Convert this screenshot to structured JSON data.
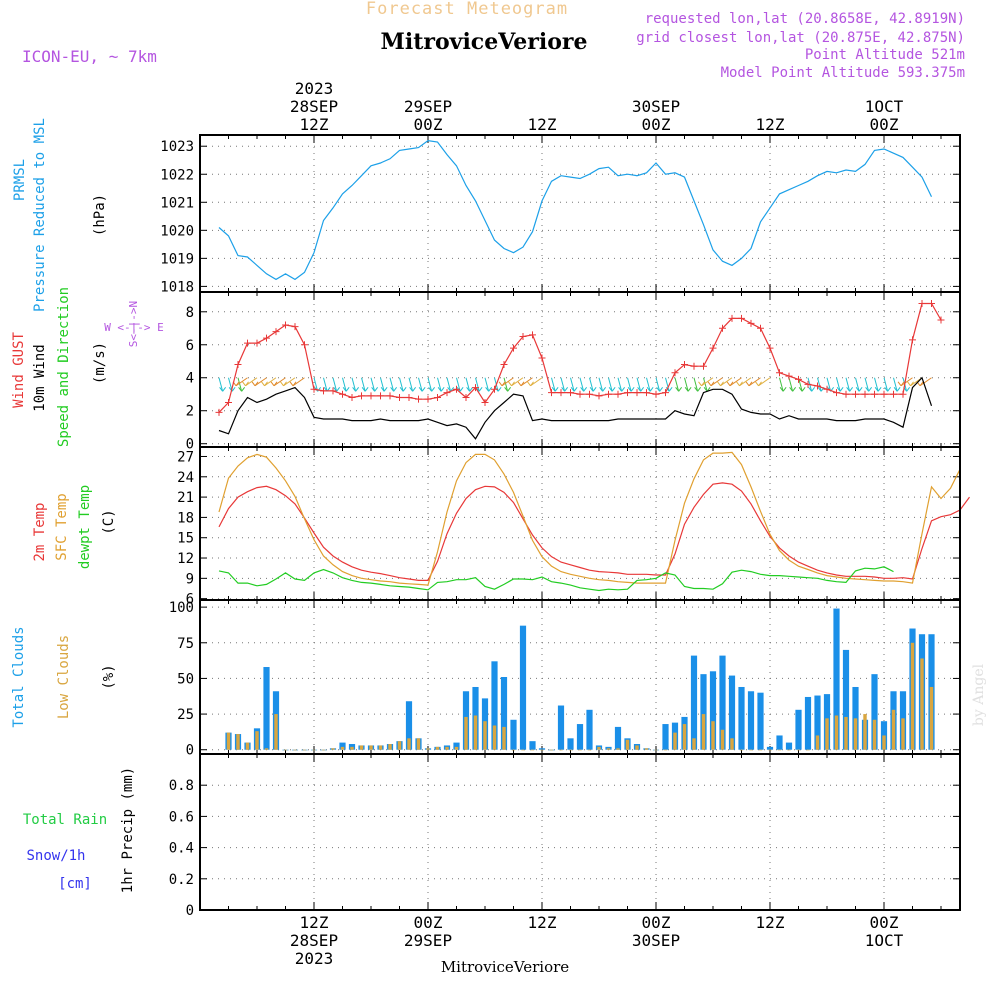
{
  "header": {
    "product": "Forecast Meteogram",
    "title": "MitroviceVeriore",
    "model": "ICON-EU, ~ 7km",
    "requested": "requested lon,lat (20.8658E, 42.8919N)",
    "closest": "grid closest lon,lat (20.875E, 42.875N)",
    "point_alt": "Point Altitude 521m",
    "model_alt": "Model Point Altitude 593.375m",
    "footer": "MitroviceVeriore",
    "credit": "by Angel"
  },
  "time_axis": {
    "top_labels": [
      {
        "h": 12,
        "lines": [
          "2023",
          "28SEP",
          "12Z"
        ]
      },
      {
        "h": 24,
        "lines": [
          "29SEP",
          "00Z"
        ]
      },
      {
        "h": 36,
        "lines": [
          "12Z"
        ]
      },
      {
        "h": 48,
        "lines": [
          "30SEP",
          "00Z"
        ]
      },
      {
        "h": 60,
        "lines": [
          "12Z"
        ]
      },
      {
        "h": 72,
        "lines": [
          "1OCT",
          "00Z"
        ]
      }
    ],
    "bottom_labels": [
      {
        "h": 12,
        "lines": [
          "12Z",
          "28SEP",
          "2023"
        ]
      },
      {
        "h": 24,
        "lines": [
          "00Z",
          "29SEP"
        ]
      },
      {
        "h": 36,
        "lines": [
          "12Z"
        ]
      },
      {
        "h": 48,
        "lines": [
          "00Z",
          "30SEP"
        ]
      },
      {
        "h": 60,
        "lines": [
          "12Z"
        ]
      },
      {
        "h": 72,
        "lines": [
          "00Z",
          "1OCT"
        ]
      }
    ]
  },
  "panel_labels": {
    "pressure": {
      "name": "PRMSL",
      "desc": "Pressure Reduced to MSL",
      "unit": "(hPa)"
    },
    "wind": {
      "gust": "Wind GUST",
      "wind": "10m Wind",
      "dir": "Speed and Direction",
      "unit": "(m/s)",
      "compass_we": "W <-|-> E",
      "compass_ns": "S<-|->N"
    },
    "temp": {
      "t2m": "2m Temp",
      "sfc": "SFC Temp",
      "dewpt": "dewpt Temp",
      "unit": "(C)"
    },
    "clouds": {
      "total": "Total Clouds",
      "low": "Low Clouds",
      "unit": "(%)"
    },
    "precip": {
      "rain": "Total  Rain",
      "snow": "Snow/1h",
      "snow_unit": "[cm]",
      "axis": "1hr Precip (mm)"
    }
  },
  "colors": {
    "pressure": "#1ca0e8",
    "gust": "#e83838",
    "wind": "#000000",
    "t2m": "#e83838",
    "sfc": "#e0a030",
    "dewpt": "#22cc22",
    "total_clouds": "#1a8fe8",
    "low_clouds": "#d9a640",
    "header_purple": "#b455e0",
    "title_orange": "#f0c890",
    "rain_green": "#22cc44",
    "snow_blue": "#3333ee"
  },
  "chart_data": [
    {
      "type": "line",
      "name": "pressure",
      "ylabel": "(hPa)",
      "ylim": [
        1017.8,
        1023.4
      ],
      "yticks": [
        1018,
        1019,
        1020,
        1021,
        1022,
        1023
      ],
      "x_start_hour": 2,
      "series": [
        {
          "name": "PRMSL",
          "values": [
            1020.1,
            1019.8,
            1019.1,
            1019.05,
            1018.75,
            1018.45,
            1018.25,
            1018.45,
            1018.25,
            1018.5,
            1019.2,
            1020.35,
            1020.8,
            1021.3,
            1021.6,
            1021.95,
            1022.3,
            1022.4,
            1022.55,
            1022.85,
            1022.9,
            1022.95,
            1023.2,
            1023.15,
            1022.7,
            1022.3,
            1021.6,
            1021.05,
            1020.35,
            1019.65,
            1019.35,
            1019.2,
            1019.4,
            1019.95,
            1021.05,
            1021.75,
            1021.95,
            1021.9,
            1021.85,
            1022.0,
            1022.2,
            1022.25,
            1021.95,
            1022.0,
            1021.95,
            1022.05,
            1022.4,
            1022.0,
            1022.05,
            1021.9,
            1021.05,
            1020.2,
            1019.3,
            1018.9,
            1018.75,
            1019.0,
            1019.35,
            1020.3,
            1020.8,
            1021.3,
            1021.45,
            1021.6,
            1021.75,
            1021.95,
            1022.1,
            1022.05,
            1022.15,
            1022.1,
            1022.35,
            1022.85,
            1022.9,
            1022.75,
            1022.6,
            1022.25,
            1021.9,
            1021.2
          ]
        }
      ]
    },
    {
      "type": "line",
      "name": "wind",
      "ylabel": "(m/s)",
      "ylim": [
        -0.2,
        9.2
      ],
      "yticks": [
        0,
        2,
        4,
        6,
        8
      ],
      "x_start_hour": 2,
      "series": [
        {
          "name": "Wind GUST",
          "values": [
            1.9,
            2.5,
            4.8,
            6.1,
            6.1,
            6.4,
            6.8,
            7.2,
            7.1,
            6.0,
            3.3,
            3.2,
            3.2,
            3.0,
            2.8,
            2.9,
            2.9,
            2.9,
            2.9,
            2.8,
            2.8,
            2.7,
            2.7,
            2.8,
            3.1,
            3.3,
            2.8,
            3.4,
            2.5,
            3.3,
            4.8,
            5.8,
            6.5,
            6.6,
            5.2,
            3.1,
            3.1,
            3.1,
            3.0,
            3.0,
            2.9,
            3.0,
            3.0,
            3.1,
            3.1,
            3.1,
            3.0,
            3.1,
            4.3,
            4.8,
            4.7,
            4.7,
            5.8,
            7.0,
            7.6,
            7.6,
            7.3,
            7.0,
            5.8,
            4.3,
            4.1,
            3.9,
            3.6,
            3.5,
            3.3,
            3.1,
            3.0,
            3.0,
            3.0,
            3.0,
            3.0,
            3.0,
            3.0,
            6.3,
            8.5,
            8.5,
            7.5
          ]
        },
        {
          "name": "10m Wind",
          "values": [
            0.8,
            0.6,
            2.0,
            2.8,
            2.5,
            2.7,
            3.0,
            3.2,
            3.4,
            2.8,
            1.6,
            1.5,
            1.5,
            1.5,
            1.4,
            1.4,
            1.4,
            1.5,
            1.4,
            1.4,
            1.4,
            1.4,
            1.5,
            1.3,
            1.1,
            1.2,
            1.0,
            0.3,
            1.3,
            2.0,
            2.5,
            3.0,
            2.9,
            1.4,
            1.5,
            1.4,
            1.4,
            1.4,
            1.4,
            1.4,
            1.4,
            1.4,
            1.5,
            1.5,
            1.5,
            1.5,
            1.5,
            1.5,
            2.0,
            1.8,
            1.7,
            3.1,
            3.3,
            3.3,
            3.0,
            2.1,
            1.9,
            1.8,
            1.8,
            1.5,
            1.7,
            1.5,
            1.5,
            1.5,
            1.5,
            1.4,
            1.4,
            1.4,
            1.5,
            1.5,
            1.5,
            1.3,
            1.0,
            3.4,
            4.0,
            2.3
          ]
        }
      ],
      "arrows": {
        "y_level": 4,
        "from_hour": 2,
        "to_hour": 77,
        "step_hours": 1
      }
    },
    {
      "type": "line",
      "name": "temperature",
      "ylabel": "(C)",
      "ylim": [
        5.8,
        28.4
      ],
      "yticks": [
        6,
        9,
        12,
        15,
        18,
        21,
        24,
        27
      ],
      "x_start_hour": 2,
      "series": [
        {
          "name": "2m Temp",
          "values": [
            16.6,
            19.3,
            21.0,
            21.8,
            22.4,
            22.6,
            22.1,
            21.2,
            20.0,
            17.9,
            15.7,
            13.6,
            12.3,
            11.4,
            10.7,
            10.2,
            9.9,
            9.7,
            9.4,
            9.1,
            8.9,
            8.7,
            8.7,
            11.5,
            15.6,
            18.6,
            20.8,
            22.1,
            22.6,
            22.5,
            21.7,
            20.2,
            17.8,
            15.4,
            13.5,
            12.2,
            11.4,
            11.0,
            10.6,
            10.2,
            10.0,
            9.9,
            9.8,
            9.6,
            9.6,
            9.6,
            9.5,
            9.5,
            12.6,
            17.0,
            19.5,
            21.4,
            22.9,
            23.1,
            22.9,
            21.9,
            20.0,
            17.5,
            15.2,
            13.5,
            12.3,
            11.4,
            10.8,
            10.2,
            9.8,
            9.5,
            9.3,
            9.3,
            9.3,
            9.2,
            9.0,
            9.0,
            9.1,
            8.9,
            13.4,
            17.5,
            18.1,
            18.4,
            19.1,
            21.0
          ]
        },
        {
          "name": "SFC Temp",
          "values": [
            18.8,
            23.8,
            25.6,
            26.8,
            27.3,
            26.9,
            25.3,
            23.4,
            21.1,
            17.8,
            14.7,
            12.3,
            11.0,
            10.0,
            9.4,
            9.0,
            8.8,
            8.6,
            8.5,
            8.3,
            8.2,
            8.1,
            8.0,
            12.9,
            18.8,
            23.4,
            26.1,
            27.3,
            27.3,
            26.5,
            24.4,
            21.7,
            18.2,
            14.6,
            12.2,
            10.8,
            10.0,
            9.6,
            9.3,
            9.0,
            8.8,
            8.7,
            8.5,
            8.4,
            8.3,
            8.3,
            8.3,
            8.3,
            14.6,
            20.1,
            23.7,
            26.5,
            27.5,
            27.5,
            27.6,
            25.8,
            22.5,
            18.9,
            15.5,
            13.1,
            11.7,
            10.8,
            10.3,
            9.8,
            9.4,
            9.2,
            9.0,
            8.9,
            8.8,
            8.7,
            8.6,
            8.6,
            8.5,
            8.3,
            15.6,
            22.5,
            20.8,
            22.3,
            25.1
          ]
        },
        {
          "name": "dewpt Temp",
          "values": [
            10.1,
            9.8,
            8.3,
            8.3,
            7.9,
            8.1,
            8.9,
            9.8,
            8.9,
            8.7,
            9.8,
            10.3,
            9.8,
            9.1,
            8.7,
            8.4,
            8.3,
            8.1,
            7.9,
            7.8,
            7.7,
            7.5,
            7.3,
            8.4,
            8.5,
            8.8,
            8.8,
            9.1,
            7.8,
            7.4,
            8.1,
            8.9,
            8.9,
            8.8,
            9.2,
            8.5,
            8.3,
            8.0,
            7.6,
            7.4,
            7.2,
            7.4,
            7.3,
            7.4,
            8.7,
            8.8,
            9.0,
            9.8,
            9.5,
            7.8,
            7.5,
            7.5,
            7.4,
            8.2,
            9.9,
            10.2,
            10.0,
            9.6,
            9.4,
            9.4,
            9.3,
            9.2,
            9.1,
            9.0,
            8.7,
            8.5,
            8.4,
            10.1,
            10.5,
            10.4,
            10.7,
            10.0
          ]
        }
      ]
    },
    {
      "type": "bar",
      "name": "clouds",
      "ylabel": "(%)",
      "ylim": [
        -3,
        105
      ],
      "yticks": [
        0,
        25,
        50,
        75,
        100
      ],
      "x_start_hour": 3,
      "series": [
        {
          "name": "Total Clouds",
          "values": [
            12,
            11,
            5,
            15,
            58,
            41,
            0,
            0,
            0,
            0,
            0,
            1,
            5,
            4,
            3,
            3,
            3,
            4,
            6,
            34,
            8,
            1,
            2,
            3,
            5,
            41,
            44,
            36,
            62,
            51,
            21,
            87,
            6,
            1,
            0,
            31,
            8,
            18,
            28,
            3,
            2,
            16,
            8,
            4,
            1,
            0,
            18,
            19,
            23,
            66,
            53,
            55,
            66,
            52,
            44,
            41,
            40,
            2,
            10,
            5,
            28,
            37,
            38,
            39,
            99,
            70,
            44,
            21,
            53,
            20,
            41,
            41,
            85,
            81,
            81
          ]
        },
        {
          "name": "Low Clouds",
          "values": [
            12,
            11,
            5,
            13,
            1,
            25,
            0,
            0,
            0,
            0,
            0,
            1,
            2,
            2,
            3,
            3,
            3,
            4,
            6,
            8,
            8,
            1,
            2,
            2,
            2,
            23,
            24,
            20,
            17,
            16,
            0,
            0,
            0,
            0,
            0,
            0,
            0,
            0,
            0,
            2,
            1,
            1,
            7,
            3,
            1,
            0,
            0,
            12,
            18,
            8,
            25,
            20,
            14,
            8,
            0,
            0,
            0,
            0,
            0,
            0,
            0,
            0,
            10,
            22,
            24,
            23,
            22,
            25,
            21,
            10,
            28,
            22,
            75,
            64,
            44
          ]
        }
      ]
    },
    {
      "type": "bar",
      "name": "precip",
      "ylabel": "1hr Precip (mm)",
      "ylim": [
        0,
        1.0
      ],
      "yticks": [
        0,
        0.2,
        0.4,
        0.6,
        0.8
      ],
      "series": [
        {
          "name": "Total Rain",
          "values": []
        },
        {
          "name": "Snow/1h",
          "values": []
        }
      ]
    }
  ]
}
